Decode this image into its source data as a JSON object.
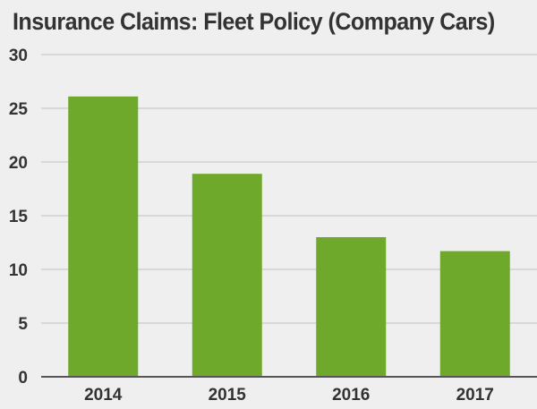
{
  "chart_data": {
    "type": "bar",
    "title": "Insurance Claims: Fleet Policy (Company Cars)",
    "categories": [
      "2014",
      "2015",
      "2016",
      "2017"
    ],
    "values": [
      26.1,
      18.9,
      13.0,
      11.7
    ],
    "ylim": [
      0,
      30
    ],
    "yticks": [
      "0",
      "5",
      "10",
      "15",
      "20",
      "25",
      "30"
    ],
    "xlabel": "",
    "ylabel": "",
    "grid": true,
    "legend": "none",
    "colors": {
      "bar": "#6fa92b",
      "grid": "#c9c9c9",
      "axis": "#555555",
      "text": "#333333",
      "background": "#efefef"
    }
  }
}
